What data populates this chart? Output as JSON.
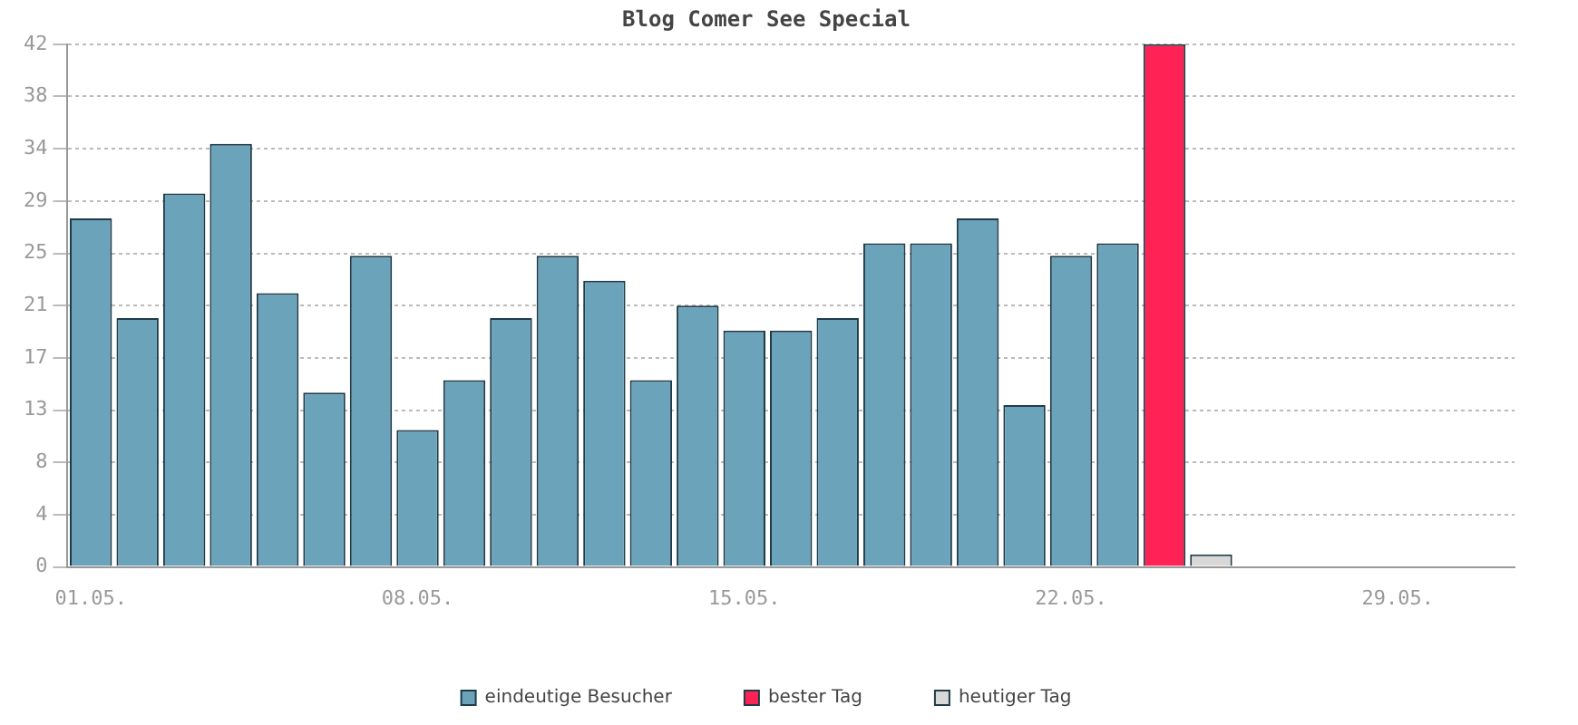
{
  "chart_data": {
    "type": "bar",
    "title": "Blog Comer See Special",
    "categories": [
      "01.05.",
      null,
      null,
      null,
      null,
      null,
      null,
      "08.05.",
      null,
      null,
      null,
      null,
      null,
      null,
      "15.05.",
      null,
      null,
      null,
      null,
      null,
      null,
      "22.05.",
      null,
      null,
      null,
      null,
      null,
      null,
      "29.05.",
      null,
      null
    ],
    "series": [
      {
        "name": "eindeutige Besucher",
        "color": "#6aa3ba",
        "values": [
          28,
          20,
          30,
          34,
          22,
          14,
          25,
          11,
          15,
          20,
          25,
          23,
          15,
          21,
          19,
          19,
          20,
          26,
          26,
          28,
          13,
          25,
          26,
          null,
          null,
          null,
          null,
          null,
          null,
          null,
          null
        ]
      },
      {
        "name": "bester Tag",
        "color": "#ff2255",
        "values": [
          null,
          null,
          null,
          null,
          null,
          null,
          null,
          null,
          null,
          null,
          null,
          null,
          null,
          null,
          null,
          null,
          null,
          null,
          null,
          null,
          null,
          null,
          null,
          42,
          null,
          null,
          null,
          null,
          null,
          null,
          null
        ]
      },
      {
        "name": "heutiger Tag",
        "color": "#d8d8d8",
        "values": [
          null,
          null,
          null,
          null,
          null,
          null,
          null,
          null,
          null,
          null,
          null,
          null,
          null,
          null,
          null,
          null,
          null,
          null,
          null,
          null,
          null,
          null,
          null,
          null,
          1,
          null,
          null,
          null,
          null,
          null,
          null
        ]
      }
    ],
    "ylim": [
      0,
      42
    ],
    "yticks": [
      0,
      {
        "value": 4.2,
        "label": "4"
      },
      {
        "value": 8.4,
        "label": "8"
      },
      {
        "value": 12.6,
        "label": "13"
      },
      {
        "value": 16.8,
        "label": "17"
      },
      21,
      {
        "value": 25.2,
        "label": "25"
      },
      {
        "value": 29.4,
        "label": "29"
      },
      {
        "value": 33.6,
        "label": "34"
      },
      {
        "value": 37.8,
        "label": "38"
      },
      42
    ],
    "grid": "y",
    "legend": "bottom"
  }
}
